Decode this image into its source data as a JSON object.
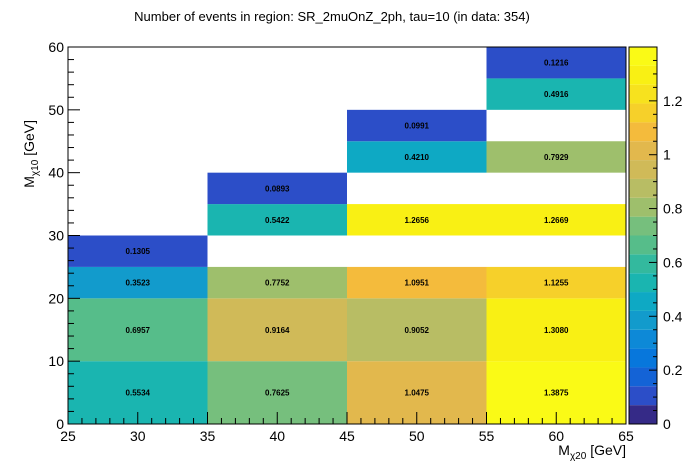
{
  "chart_data": {
    "type": "heatmap",
    "title": "Number of events in region: SR_2muOnZ_2ph, tau=10 (in data: 354)",
    "xlabel": {
      "main": "M",
      "sub": "χ20",
      "unit": " [GeV]"
    },
    "ylabel": {
      "main": "M",
      "sub": "χ10",
      "unit": " [GeV]"
    },
    "xlim": [
      25,
      65
    ],
    "ylim": [
      0,
      60
    ],
    "x_ticks": [
      "25",
      "30",
      "35",
      "40",
      "45",
      "50",
      "55",
      "60",
      "65"
    ],
    "y_ticks": [
      "0",
      "10",
      "20",
      "30",
      "40",
      "50",
      "60"
    ],
    "colorbar": {
      "range": [
        0,
        1.4
      ],
      "ticks": [
        "0",
        "0.2",
        "0.4",
        "0.6",
        "0.8",
        "1",
        "1.2"
      ],
      "tick_values": [
        0,
        0.2,
        0.4,
        0.6,
        0.8,
        1.0,
        1.2
      ]
    },
    "cells": [
      {
        "x": [
          25,
          35
        ],
        "y": [
          0,
          10
        ],
        "value": 0.5534,
        "label": "0.5534"
      },
      {
        "x": [
          25,
          35
        ],
        "y": [
          10,
          20
        ],
        "value": 0.6957,
        "label": "0.6957"
      },
      {
        "x": [
          25,
          35
        ],
        "y": [
          20,
          25
        ],
        "value": 0.3523,
        "label": "0.3523"
      },
      {
        "x": [
          25,
          35
        ],
        "y": [
          25,
          30
        ],
        "value": 0.1305,
        "label": "0.1305"
      },
      {
        "x": [
          35,
          45
        ],
        "y": [
          0,
          10
        ],
        "value": 0.7625,
        "label": "0.7625"
      },
      {
        "x": [
          35,
          45
        ],
        "y": [
          10,
          20
        ],
        "value": 0.9164,
        "label": "0.9164"
      },
      {
        "x": [
          35,
          45
        ],
        "y": [
          20,
          25
        ],
        "value": 0.7752,
        "label": "0.7752"
      },
      {
        "x": [
          35,
          45
        ],
        "y": [
          30,
          35
        ],
        "value": 0.5422,
        "label": "0.5422"
      },
      {
        "x": [
          35,
          45
        ],
        "y": [
          35,
          40
        ],
        "value": 0.0893,
        "label": "0.0893"
      },
      {
        "x": [
          45,
          55
        ],
        "y": [
          0,
          10
        ],
        "value": 1.0475,
        "label": "1.0475"
      },
      {
        "x": [
          45,
          55
        ],
        "y": [
          10,
          20
        ],
        "value": 0.9052,
        "label": "0.9052"
      },
      {
        "x": [
          45,
          55
        ],
        "y": [
          20,
          25
        ],
        "value": 1.0951,
        "label": "1.0951"
      },
      {
        "x": [
          45,
          55
        ],
        "y": [
          30,
          35
        ],
        "value": 1.2656,
        "label": "1.2656"
      },
      {
        "x": [
          45,
          55
        ],
        "y": [
          40,
          45
        ],
        "value": 0.421,
        "label": "0.4210"
      },
      {
        "x": [
          45,
          55
        ],
        "y": [
          45,
          50
        ],
        "value": 0.0991,
        "label": "0.0991"
      },
      {
        "x": [
          55,
          65
        ],
        "y": [
          0,
          10
        ],
        "value": 1.3875,
        "label": "1.3875"
      },
      {
        "x": [
          55,
          65
        ],
        "y": [
          10,
          20
        ],
        "value": 1.308,
        "label": "1.3080"
      },
      {
        "x": [
          55,
          65
        ],
        "y": [
          20,
          25
        ],
        "value": 1.1255,
        "label": "1.1255"
      },
      {
        "x": [
          55,
          65
        ],
        "y": [
          30,
          35
        ],
        "value": 1.2669,
        "label": "1.2669"
      },
      {
        "x": [
          55,
          65
        ],
        "y": [
          40,
          45
        ],
        "value": 0.7929,
        "label": "0.7929"
      },
      {
        "x": [
          55,
          65
        ],
        "y": [
          50,
          55
        ],
        "value": 0.4916,
        "label": "0.4916"
      },
      {
        "x": [
          55,
          65
        ],
        "y": [
          55,
          60
        ],
        "value": 0.1216,
        "label": "0.1216"
      }
    ],
    "palette": [
      "#352a87",
      "#2c4ec8",
      "#1463d6",
      "#0777dc",
      "#0d89d7",
      "#129bcc",
      "#0ea9c4",
      "#1ab5b0",
      "#33b99e",
      "#56bd8a",
      "#76bf7d",
      "#9ebf6c",
      "#b8bd64",
      "#d0ba58",
      "#e2b84d",
      "#f4bb3c",
      "#f6d02a",
      "#f7e21e",
      "#f9f014",
      "#fafa16"
    ],
    "grid": false,
    "colorbar_placement": "right"
  }
}
